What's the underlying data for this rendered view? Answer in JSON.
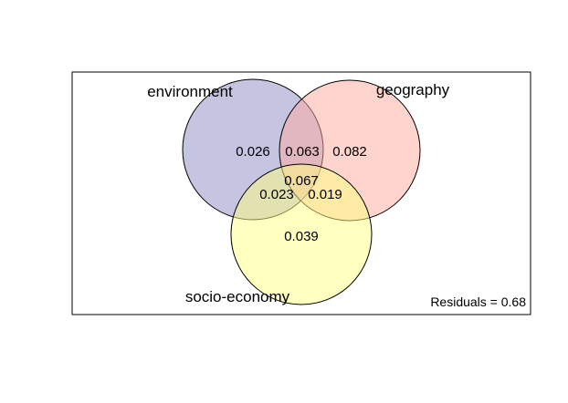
{
  "sets": [
    {
      "name": "environment",
      "color": "#8b8cc5"
    },
    {
      "name": "geography",
      "color": "#ffaa9c"
    },
    {
      "name": "socio-economy",
      "color": "#ffff80"
    }
  ],
  "regions": {
    "environment_only": "0.026",
    "environment_geography": "0.063",
    "geography_only": "0.082",
    "all_three": "0.067",
    "environment_socio": "0.023",
    "geography_socio": "0.019",
    "socio_only": "0.039"
  },
  "residuals": "Residuals = 0.68"
}
